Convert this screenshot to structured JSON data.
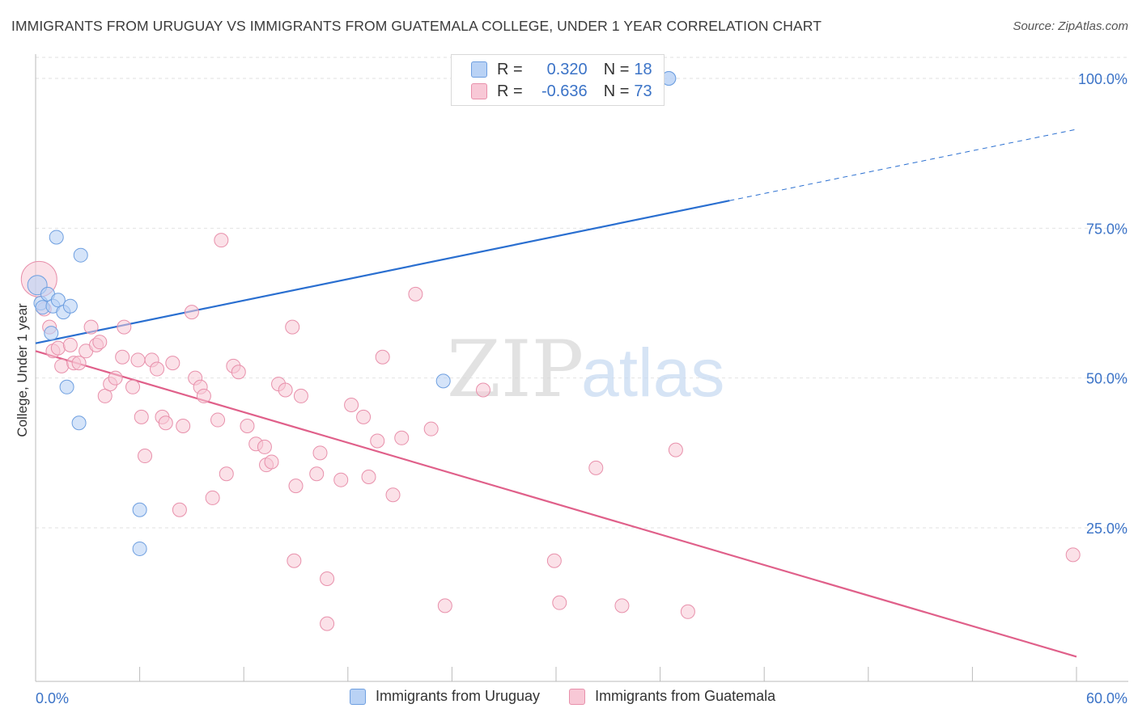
{
  "title": "IMMIGRANTS FROM URUGUAY VS IMMIGRANTS FROM GUATEMALA COLLEGE, UNDER 1 YEAR CORRELATION CHART",
  "source": "Source: ZipAtlas.com",
  "watermark": {
    "zip": "ZIP",
    "atlas": "atlas"
  },
  "legend_top": {
    "rows": [
      {
        "r_label": "R =",
        "r_value": "0.320",
        "n_label": "N =",
        "n_value": "18"
      },
      {
        "r_label": "R =",
        "r_value": "-0.636",
        "n_label": "N =",
        "n_value": "73"
      }
    ]
  },
  "colors": {
    "uruguay_fill": "#b9d2f5",
    "uruguay_stroke": "#6e9fe0",
    "uruguay_line": "#2a6fd0",
    "guatemala_fill": "#f8c8d6",
    "guatemala_stroke": "#e890ab",
    "guatemala_line": "#e0608a",
    "axis_text": "#3b73c7",
    "grid": "#e2e2e2"
  },
  "chart_data": {
    "type": "scatter",
    "title": "IMMIGRANTS FROM URUGUAY VS IMMIGRANTS FROM GUATEMALA COLLEGE, UNDER 1 YEAR CORRELATION CHART",
    "xlabel": "",
    "ylabel": "College, Under 1 year",
    "xlim": [
      0,
      60
    ],
    "ylim": [
      0,
      105
    ],
    "x_tick_labels": [
      "0.0%",
      "60.0%"
    ],
    "y_tick_labels": [
      "25.0%",
      "50.0%",
      "75.0%",
      "100.0%"
    ],
    "y_ticks": [
      25,
      50,
      75,
      100
    ],
    "grid": true,
    "legend_position": "top-center",
    "series": [
      {
        "name": "Immigrants from Uruguay",
        "r": 0.32,
        "n": 18,
        "points": [
          [
            0.1,
            65.5
          ],
          [
            0.3,
            62.5
          ],
          [
            0.4,
            61.8
          ],
          [
            0.7,
            64.0
          ],
          [
            0.9,
            57.5
          ],
          [
            1.0,
            62.0
          ],
          [
            1.2,
            73.5
          ],
          [
            1.3,
            63.0
          ],
          [
            1.6,
            61.0
          ],
          [
            1.8,
            48.5
          ],
          [
            2.0,
            62.0
          ],
          [
            2.5,
            42.5
          ],
          [
            2.6,
            70.5
          ],
          [
            6.0,
            28.0
          ],
          [
            6.0,
            21.5
          ],
          [
            23.5,
            49.5
          ],
          [
            36.5,
            100.0
          ],
          [
            36.5,
            100.0
          ]
        ],
        "trend": {
          "x0": 0,
          "y0": 55.8,
          "x1": 40,
          "y1": 79.6,
          "dash_x1": 60,
          "dash_y1": 91.5
        }
      },
      {
        "name": "Immigrants from Guatemala",
        "r": -0.636,
        "n": 73,
        "points": [
          [
            0.2,
            66.5
          ],
          [
            0.5,
            61.5
          ],
          [
            0.8,
            58.5
          ],
          [
            1.0,
            54.5
          ],
          [
            1.3,
            55.0
          ],
          [
            1.5,
            52.0
          ],
          [
            2.0,
            55.5
          ],
          [
            2.2,
            52.5
          ],
          [
            2.5,
            52.5
          ],
          [
            2.9,
            54.5
          ],
          [
            3.2,
            58.5
          ],
          [
            3.5,
            55.5
          ],
          [
            3.7,
            56.0
          ],
          [
            4.0,
            47.0
          ],
          [
            4.3,
            49.0
          ],
          [
            4.6,
            50.0
          ],
          [
            5.0,
            53.5
          ],
          [
            5.1,
            58.5
          ],
          [
            5.6,
            48.5
          ],
          [
            5.9,
            53.0
          ],
          [
            6.1,
            43.5
          ],
          [
            6.3,
            37.0
          ],
          [
            6.7,
            53.0
          ],
          [
            7.0,
            51.5
          ],
          [
            7.3,
            43.5
          ],
          [
            7.5,
            42.5
          ],
          [
            7.9,
            52.5
          ],
          [
            8.3,
            28.0
          ],
          [
            8.5,
            42.0
          ],
          [
            9.0,
            61.0
          ],
          [
            9.2,
            50.0
          ],
          [
            9.5,
            48.5
          ],
          [
            9.7,
            47.0
          ],
          [
            10.2,
            30.0
          ],
          [
            10.5,
            43.0
          ],
          [
            10.7,
            73.0
          ],
          [
            11.0,
            34.0
          ],
          [
            11.4,
            52.0
          ],
          [
            11.7,
            51.0
          ],
          [
            12.2,
            42.0
          ],
          [
            12.7,
            39.0
          ],
          [
            13.2,
            38.5
          ],
          [
            13.3,
            35.5
          ],
          [
            13.6,
            36.0
          ],
          [
            14.0,
            49.0
          ],
          [
            14.4,
            48.0
          ],
          [
            14.8,
            58.5
          ],
          [
            15.0,
            32.0
          ],
          [
            15.3,
            47.0
          ],
          [
            14.9,
            19.5
          ],
          [
            16.2,
            34.0
          ],
          [
            16.4,
            37.5
          ],
          [
            16.8,
            16.5
          ],
          [
            16.8,
            9.0
          ],
          [
            17.6,
            33.0
          ],
          [
            18.2,
            45.5
          ],
          [
            18.9,
            43.5
          ],
          [
            19.2,
            33.5
          ],
          [
            19.7,
            39.5
          ],
          [
            20.0,
            53.5
          ],
          [
            20.6,
            30.5
          ],
          [
            21.1,
            40.0
          ],
          [
            21.9,
            64.0
          ],
          [
            22.8,
            41.5
          ],
          [
            23.6,
            12.0
          ],
          [
            25.8,
            48.0
          ],
          [
            29.9,
            19.5
          ],
          [
            30.2,
            12.5
          ],
          [
            32.3,
            35.0
          ],
          [
            33.8,
            12.0
          ],
          [
            36.9,
            38.0
          ],
          [
            37.6,
            11.0
          ],
          [
            59.8,
            20.5
          ]
        ],
        "trend": {
          "x0": 0,
          "y0": 54.5,
          "x1": 60,
          "y1": 3.5
        }
      }
    ]
  },
  "bottom_legend": [
    {
      "label": "Immigrants from Uruguay"
    },
    {
      "label": "Immigrants from Guatemala"
    }
  ]
}
